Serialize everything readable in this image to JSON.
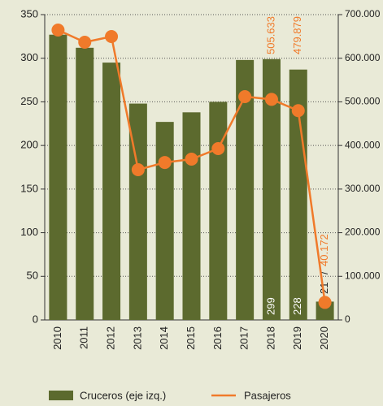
{
  "chart_data": {
    "type": "bar-line",
    "categories": [
      "2010",
      "2011",
      "2012",
      "2013",
      "2014",
      "2015",
      "2016",
      "2017",
      "2018",
      "2019",
      "2020"
    ],
    "series": [
      {
        "name": "Cruceros (eje izq.)",
        "type": "bar",
        "color": "#5c6a2e",
        "values": [
          327,
          312,
          295,
          248,
          227,
          238,
          250,
          298,
          299,
          287,
          21
        ],
        "value_labels": [
          null,
          null,
          null,
          null,
          null,
          null,
          null,
          null,
          "299",
          null,
          "21"
        ]
      },
      {
        "name": "Pasajeros",
        "type": "line",
        "axis": "y2",
        "color": "#f07a2a",
        "values": [
          664600,
          636700,
          649700,
          344400,
          361000,
          368600,
          392800,
          512000,
          505633,
          479879,
          40172
        ],
        "value_labels": [
          null,
          null,
          null,
          null,
          null,
          null,
          null,
          null,
          "505.633",
          "479.879",
          "40.172"
        ]
      }
    ],
    "annotations": [
      "228",
      "/"
    ],
    "ylim": [
      0,
      350
    ],
    "yticks": [
      0,
      50,
      100,
      150,
      200,
      250,
      300,
      350
    ],
    "y2lim": [
      0,
      700000
    ],
    "y2ticks": [
      0,
      {
        "value": 100000,
        "label": "100.000"
      },
      {
        "value": 200000,
        "label": "200.000"
      },
      {
        "value": 300000,
        "label": "300.000"
      },
      {
        "value": 400000,
        "label": "400.000"
      },
      {
        "value": 500000,
        "label": "500.000"
      },
      {
        "value": 600000,
        "label": "600.000"
      },
      {
        "value": 700000,
        "label": "700.000"
      }
    ],
    "grid": true
  }
}
